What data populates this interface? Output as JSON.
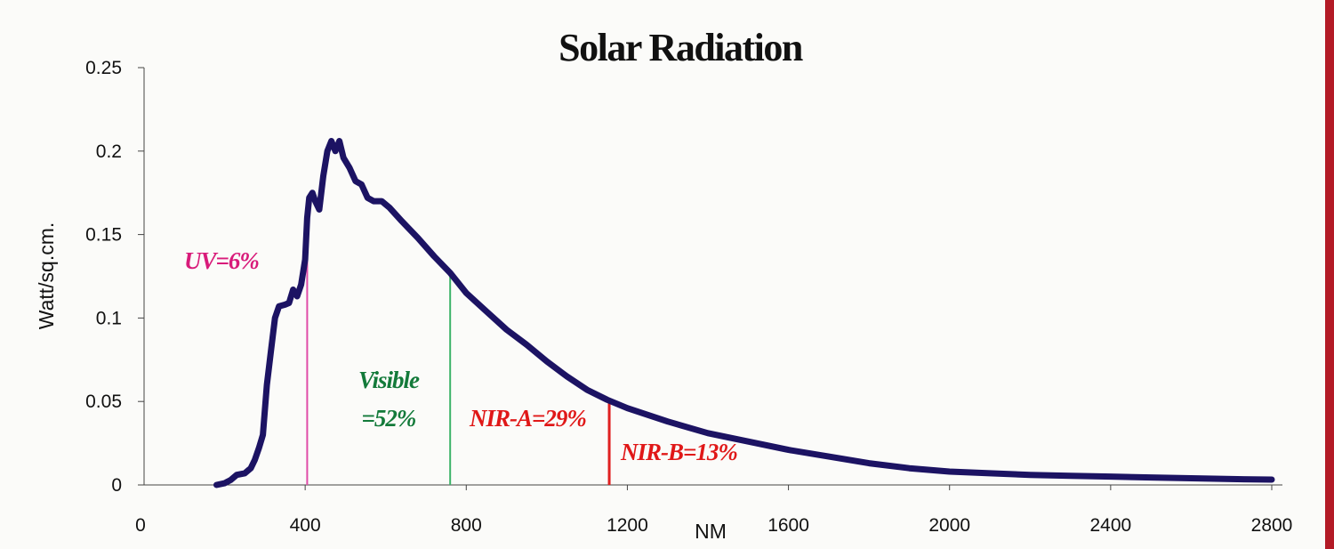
{
  "chart_data": {
    "type": "line",
    "title": "Solar Radiation",
    "xlabel": "NM",
    "ylabel": "Watt/sq.cm.",
    "xlim": [
      0,
      2800
    ],
    "ylim": [
      0,
      0.25
    ],
    "x_ticks": [
      "0",
      "400",
      "800",
      "1200",
      "1600",
      "2000",
      "2400",
      "2800"
    ],
    "y_ticks": [
      "0",
      "0.05",
      "0.1",
      "0.15",
      "0.2",
      "0.25"
    ],
    "grid": false,
    "series": [
      {
        "color": "#1c1363",
        "points": [
          [
            180,
            0
          ],
          [
            200,
            0.001
          ],
          [
            215,
            0.003
          ],
          [
            230,
            0.006
          ],
          [
            250,
            0.007
          ],
          [
            265,
            0.01
          ],
          [
            275,
            0.015
          ],
          [
            285,
            0.022
          ],
          [
            295,
            0.03
          ],
          [
            305,
            0.06
          ],
          [
            315,
            0.08
          ],
          [
            325,
            0.1
          ],
          [
            335,
            0.107
          ],
          [
            350,
            0.108
          ],
          [
            360,
            0.109
          ],
          [
            370,
            0.117
          ],
          [
            380,
            0.113
          ],
          [
            390,
            0.12
          ],
          [
            400,
            0.135
          ],
          [
            405,
            0.16
          ],
          [
            410,
            0.172
          ],
          [
            418,
            0.175
          ],
          [
            425,
            0.17
          ],
          [
            435,
            0.165
          ],
          [
            445,
            0.185
          ],
          [
            455,
            0.2
          ],
          [
            465,
            0.206
          ],
          [
            475,
            0.2
          ],
          [
            485,
            0.206
          ],
          [
            495,
            0.196
          ],
          [
            510,
            0.19
          ],
          [
            525,
            0.182
          ],
          [
            540,
            0.18
          ],
          [
            555,
            0.172
          ],
          [
            570,
            0.17
          ],
          [
            590,
            0.17
          ],
          [
            610,
            0.166
          ],
          [
            640,
            0.158
          ],
          [
            680,
            0.148
          ],
          [
            720,
            0.137
          ],
          [
            760,
            0.127
          ],
          [
            800,
            0.115
          ],
          [
            850,
            0.104
          ],
          [
            900,
            0.093
          ],
          [
            950,
            0.084
          ],
          [
            1000,
            0.074
          ],
          [
            1050,
            0.065
          ],
          [
            1100,
            0.057
          ],
          [
            1150,
            0.051
          ],
          [
            1200,
            0.046
          ],
          [
            1300,
            0.038
          ],
          [
            1400,
            0.031
          ],
          [
            1500,
            0.026
          ],
          [
            1600,
            0.021
          ],
          [
            1700,
            0.017
          ],
          [
            1800,
            0.013
          ],
          [
            1900,
            0.01
          ],
          [
            2000,
            0.008
          ],
          [
            2100,
            0.007
          ],
          [
            2200,
            0.006
          ],
          [
            2300,
            0.0055
          ],
          [
            2400,
            0.005
          ],
          [
            2500,
            0.0045
          ],
          [
            2600,
            0.004
          ],
          [
            2700,
            0.0035
          ],
          [
            2800,
            0.0032
          ]
        ]
      }
    ],
    "boundaries": [
      {
        "x": 405,
        "color": "#e04ca8"
      },
      {
        "x": 760,
        "color": "#3db36a"
      },
      {
        "x": 1155,
        "color": "#e02020"
      }
    ],
    "annotations": [
      {
        "text": "UV=6%",
        "color": "#d81b7a"
      },
      {
        "text": "Visible",
        "color": "#137a3a"
      },
      {
        "text": "=52%",
        "color": "#137a3a"
      },
      {
        "text": "NIR-A=29%",
        "color": "#e01818"
      },
      {
        "text": "NIR-B=13%",
        "color": "#e01818"
      }
    ]
  }
}
